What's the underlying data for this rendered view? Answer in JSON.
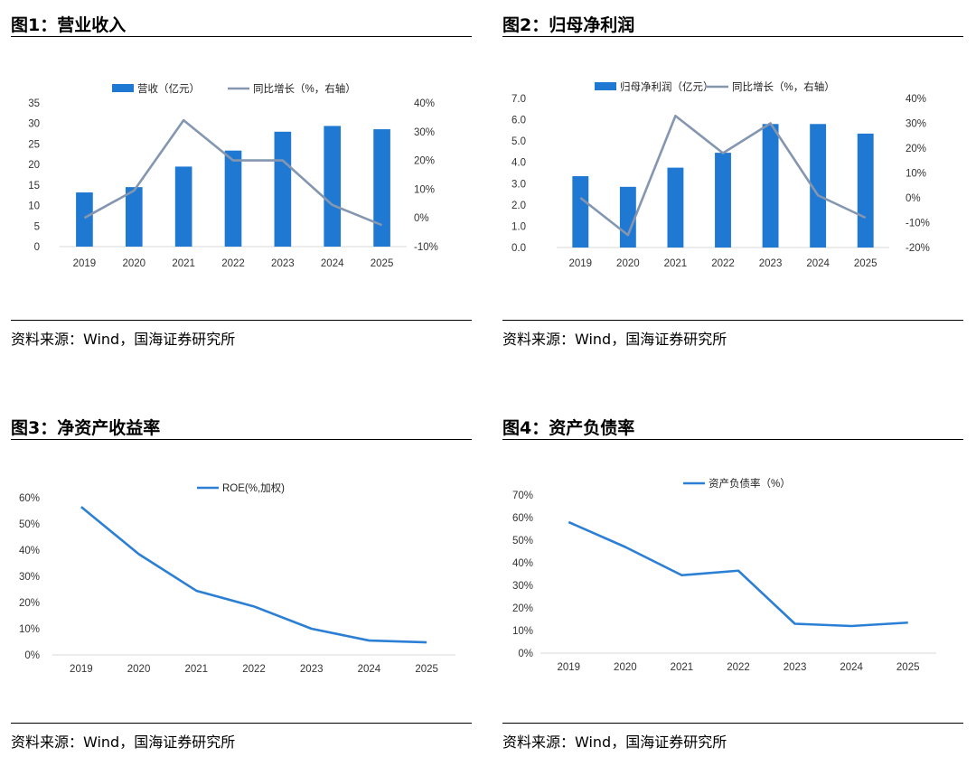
{
  "panels": [
    {
      "title": "图1：营业收入",
      "source": "资料来源：Wind，国海证券研究所"
    },
    {
      "title": "图2：归母净利润",
      "source": "资料来源：Wind，国海证券研究所"
    },
    {
      "title": "图3：净资产收益率",
      "source": "资料来源：Wind，国海证券研究所"
    },
    {
      "title": "图4：资产负债率",
      "source": "资料来源：Wind，国海证券研究所"
    }
  ],
  "colors": {
    "bar": "#1f78d1",
    "growth_line": "#8496b0",
    "line": "#2b7fd4",
    "axis": "#d9d9d9"
  },
  "chart_data": [
    {
      "type": "bar",
      "categories": [
        "2019",
        "2020",
        "2021",
        "2022",
        "2023",
        "2024",
        "2025"
      ],
      "series": [
        {
          "name": "营收（亿元）",
          "type": "bar",
          "axis": "left",
          "values": [
            13.2,
            14.5,
            19.5,
            23.4,
            28.0,
            29.4,
            28.6
          ]
        },
        {
          "name": "同比增长（%，右轴）",
          "type": "line",
          "axis": "right",
          "values": [
            0,
            9.5,
            34,
            20,
            20,
            4.5,
            -2.5
          ]
        }
      ],
      "yticks_left": [
        "0",
        "5",
        "10",
        "15",
        "20",
        "25",
        "30",
        "35"
      ],
      "ylim_left": [
        0,
        35
      ],
      "yticks_right": [
        "-10%",
        "0%",
        "10%",
        "20%",
        "30%",
        "40%"
      ],
      "ylim_right": [
        -10,
        40
      ],
      "legend": "top-center"
    },
    {
      "type": "bar",
      "categories": [
        "2019",
        "2020",
        "2021",
        "2022",
        "2023",
        "2024",
        "2025"
      ],
      "series": [
        {
          "name": "归母净利润（亿元）",
          "type": "bar",
          "axis": "left",
          "values": [
            3.35,
            2.85,
            3.75,
            4.45,
            5.8,
            5.8,
            5.35
          ]
        },
        {
          "name": "同比增长（%，右轴）",
          "type": "line",
          "axis": "right",
          "values": [
            0,
            -15,
            33,
            18,
            30,
            1,
            -8
          ]
        }
      ],
      "yticks_left": [
        "0.0",
        "1.0",
        "2.0",
        "3.0",
        "4.0",
        "5.0",
        "6.0",
        "7.0"
      ],
      "ylim_left": [
        0,
        7
      ],
      "yticks_right": [
        "-20%",
        "-10%",
        "0%",
        "10%",
        "20%",
        "30%",
        "40%"
      ],
      "ylim_right": [
        -20,
        40
      ],
      "legend": "top-center"
    },
    {
      "type": "line",
      "categories": [
        "2019",
        "2020",
        "2021",
        "2022",
        "2023",
        "2024",
        "2025"
      ],
      "series": [
        {
          "name": "ROE(%,加权)",
          "values": [
            56.5,
            38.5,
            24.5,
            18.5,
            10,
            5.5,
            4.8
          ]
        }
      ],
      "yticks": [
        "0%",
        "10%",
        "20%",
        "30%",
        "40%",
        "50%",
        "60%"
      ],
      "ylim": [
        0,
        60
      ],
      "legend": "top-center"
    },
    {
      "type": "line",
      "categories": [
        "2019",
        "2020",
        "2021",
        "2022",
        "2023",
        "2024",
        "2025"
      ],
      "series": [
        {
          "name": "资产负债率（%）",
          "values": [
            58,
            47,
            34.5,
            36.5,
            13,
            12,
            13.5
          ]
        }
      ],
      "yticks": [
        "0%",
        "10%",
        "20%",
        "30%",
        "40%",
        "50%",
        "60%",
        "70%"
      ],
      "ylim": [
        0,
        70
      ],
      "legend": "top-center"
    }
  ]
}
